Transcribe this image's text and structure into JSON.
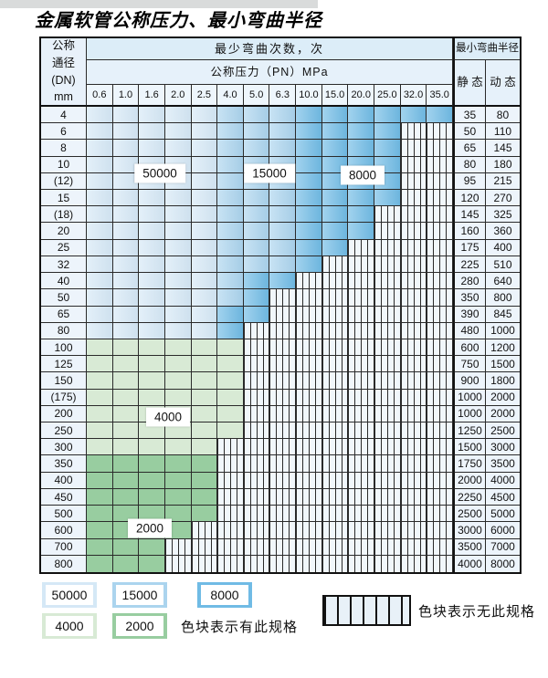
{
  "title": "金属软管公称压力、最小弯曲半径",
  "colors": {
    "c50000": "#d5e8f6",
    "c15000": "#abd4ee",
    "c8000": "#70bbe5",
    "c4000": "#d8ead5",
    "c2000": "#98cda0"
  },
  "table": {
    "header": {
      "dn_lines": [
        "公称",
        "通径",
        "(DN)",
        "mm"
      ],
      "cycles_label": "最少弯曲次数，次",
      "pressure_label": "公称压力（PN）MPa",
      "radius_label": "最小弯曲半径",
      "static_label": "静 态",
      "dynamic_label": "动 态",
      "pressures": [
        "0.6",
        "1.0",
        "1.6",
        "2.0",
        "2.5",
        "4.0",
        "5.0",
        "6.3",
        "10.0",
        "15.0",
        "20.0",
        "25.0",
        "32.0",
        "35.0"
      ]
    },
    "spec_labels": [
      "50000",
      "15000",
      "8000",
      "4000",
      "2000"
    ],
    "rows": [
      {
        "dn": "4",
        "static": "35",
        "dynamic": "80",
        "band": "blue",
        "light_end": 4,
        "med_end": 7,
        "end": 13
      },
      {
        "dn": "6",
        "static": "50",
        "dynamic": "110",
        "band": "blue",
        "light_end": 4,
        "med_end": 7,
        "end": 11
      },
      {
        "dn": "8",
        "static": "65",
        "dynamic": "145",
        "band": "blue",
        "light_end": 4,
        "med_end": 7,
        "end": 11
      },
      {
        "dn": "10",
        "static": "80",
        "dynamic": "180",
        "band": "blue",
        "light_end": 4,
        "med_end": 7,
        "end": 11
      },
      {
        "dn": "(12)",
        "static": "95",
        "dynamic": "215",
        "band": "blue",
        "light_end": 4,
        "med_end": 7,
        "end": 11
      },
      {
        "dn": "15",
        "static": "120",
        "dynamic": "270",
        "band": "blue",
        "light_end": 4,
        "med_end": 7,
        "end": 11
      },
      {
        "dn": "(18)",
        "static": "145",
        "dynamic": "325",
        "band": "blue",
        "light_end": 4,
        "med_end": 7,
        "end": 10
      },
      {
        "dn": "20",
        "static": "160",
        "dynamic": "360",
        "band": "blue",
        "light_end": 4,
        "med_end": 7,
        "end": 10
      },
      {
        "dn": "25",
        "static": "175",
        "dynamic": "400",
        "band": "blue",
        "light_end": 4,
        "med_end": 7,
        "end": 9
      },
      {
        "dn": "32",
        "static": "225",
        "dynamic": "510",
        "band": "blue",
        "light_end": 4,
        "med_end": 7,
        "end": 8
      },
      {
        "dn": "40",
        "static": "280",
        "dynamic": "640",
        "band": "blue",
        "light_end": 4,
        "med_end": 5,
        "end": 7
      },
      {
        "dn": "50",
        "static": "350",
        "dynamic": "800",
        "band": "blue",
        "light_end": 4,
        "med_end": 5,
        "end": 6
      },
      {
        "dn": "65",
        "static": "390",
        "dynamic": "845",
        "band": "blue",
        "light_end": 4,
        "med_end": 4,
        "end": 6
      },
      {
        "dn": "80",
        "static": "480",
        "dynamic": "1000",
        "band": "blue",
        "light_end": 4,
        "med_end": 4,
        "end": 5
      },
      {
        "dn": "100",
        "static": "600",
        "dynamic": "1200",
        "band": "g4",
        "end": 5
      },
      {
        "dn": "125",
        "static": "750",
        "dynamic": "1500",
        "band": "g4",
        "end": 5
      },
      {
        "dn": "150",
        "static": "900",
        "dynamic": "1800",
        "band": "g4",
        "end": 5
      },
      {
        "dn": "(175)",
        "static": "1000",
        "dynamic": "2000",
        "band": "g4",
        "end": 5
      },
      {
        "dn": "200",
        "static": "1000",
        "dynamic": "2000",
        "band": "g4",
        "end": 5
      },
      {
        "dn": "250",
        "static": "1250",
        "dynamic": "2500",
        "band": "g4",
        "end": 5
      },
      {
        "dn": "300",
        "static": "1500",
        "dynamic": "3000",
        "band": "g4",
        "end": 4
      },
      {
        "dn": "350",
        "static": "1750",
        "dynamic": "3500",
        "band": "g2",
        "end": 4
      },
      {
        "dn": "400",
        "static": "2000",
        "dynamic": "4000",
        "band": "g2",
        "end": 4
      },
      {
        "dn": "450",
        "static": "2250",
        "dynamic": "4500",
        "band": "g2",
        "end": 4
      },
      {
        "dn": "500",
        "static": "2500",
        "dynamic": "5000",
        "band": "g2",
        "end": 4
      },
      {
        "dn": "600",
        "static": "3000",
        "dynamic": "6000",
        "band": "g2",
        "end": 3
      },
      {
        "dn": "700",
        "static": "3500",
        "dynamic": "7000",
        "band": "g2",
        "end": 2
      },
      {
        "dn": "800",
        "static": "4000",
        "dynamic": "8000",
        "band": "g2",
        "end": 2
      }
    ]
  },
  "legend": {
    "items": [
      {
        "label": "50000"
      },
      {
        "label": "15000"
      },
      {
        "label": "8000"
      },
      {
        "label": "4000"
      },
      {
        "label": "2000"
      }
    ],
    "has_spec_note": "色块表示有此规格",
    "no_spec_note": "色块表示无此规格"
  }
}
